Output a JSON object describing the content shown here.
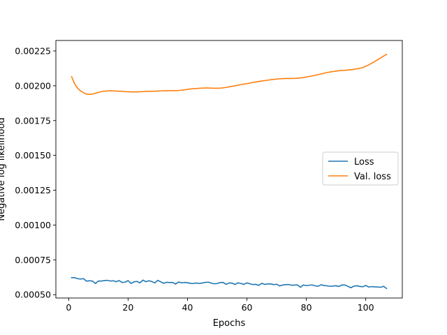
{
  "chart_data": {
    "type": "line",
    "title": "",
    "xlabel": "Epochs",
    "ylabel": "Negative log likelihood",
    "xlim": [
      -4.3,
      112.3
    ],
    "ylim": [
      0.000476,
      0.002325
    ],
    "xticks": [
      0,
      20,
      40,
      60,
      80,
      100
    ],
    "yticks": [
      0.0005,
      0.00075,
      0.001,
      0.00125,
      0.0015,
      0.00175,
      0.002,
      0.00225
    ],
    "ytick_labels": [
      "0.00050",
      "0.00075",
      "0.00100",
      "0.00125",
      "0.00150",
      "0.00175",
      "0.00200",
      "0.00225"
    ],
    "grid": false,
    "legend_position": "center-right",
    "series": [
      {
        "name": "Loss",
        "color": "#1f77b4",
        "x": [
          1,
          2,
          3,
          4,
          5,
          6,
          7,
          8,
          9,
          10,
          11,
          12,
          13,
          14,
          15,
          16,
          17,
          18,
          19,
          20,
          21,
          22,
          23,
          24,
          25,
          26,
          27,
          28,
          29,
          30,
          31,
          32,
          33,
          34,
          35,
          36,
          37,
          38,
          39,
          40,
          41,
          42,
          43,
          44,
          45,
          46,
          47,
          48,
          49,
          50,
          51,
          52,
          53,
          54,
          55,
          56,
          57,
          58,
          59,
          60,
          61,
          62,
          63,
          64,
          65,
          66,
          67,
          68,
          69,
          70,
          71,
          72,
          73,
          74,
          75,
          76,
          77,
          78,
          79,
          80,
          81,
          82,
          83,
          84,
          85,
          86,
          87,
          88,
          89,
          90,
          91,
          92,
          93,
          94,
          95,
          96,
          97,
          98,
          99,
          100,
          101,
          102,
          103,
          104,
          105,
          106,
          107
        ],
        "values": [
          0.000622,
          0.000622,
          0.000615,
          0.000612,
          0.000615,
          0.000597,
          0.0006,
          0.000598,
          0.00058,
          0.000598,
          0.000598,
          0.000601,
          0.000603,
          0.000598,
          0.0006,
          0.000593,
          0.000601,
          0.000588,
          0.00059,
          0.000601,
          0.00058,
          0.000592,
          0.000595,
          0.000585,
          0.000605,
          0.000593,
          0.0006,
          0.000594,
          0.000585,
          0.000603,
          0.000592,
          0.000582,
          0.000589,
          0.000587,
          0.000588,
          0.000576,
          0.000591,
          0.000585,
          0.000588,
          0.000586,
          0.000581,
          0.00058,
          0.000584,
          0.00058,
          0.000584,
          0.000588,
          0.00059,
          0.000583,
          0.000578,
          0.00058,
          0.000587,
          0.000588,
          0.000574,
          0.000584,
          0.000583,
          0.000573,
          0.000585,
          0.00058,
          0.000574,
          0.000585,
          0.000578,
          0.000573,
          0.000574,
          0.000567,
          0.000582,
          0.000574,
          0.000577,
          0.000577,
          0.000572,
          0.000575,
          0.000563,
          0.000569,
          0.000572,
          0.000573,
          0.000568,
          0.000569,
          0.00057,
          0.000553,
          0.00057,
          0.000565,
          0.000568,
          0.00057,
          0.000563,
          0.000561,
          0.000571,
          0.000566,
          0.000563,
          0.00056,
          0.000562,
          0.000564,
          0.000559,
          0.00057,
          0.000569,
          0.00056,
          0.00055,
          0.000561,
          0.000564,
          0.000559,
          0.000557,
          0.000566,
          0.000555,
          0.000558,
          0.000556,
          0.000555,
          0.000553,
          0.00056,
          0.000544
        ]
      },
      {
        "name": "Val. loss",
        "color": "#ff7f0e",
        "x": [
          1,
          2,
          3,
          4,
          5,
          6,
          7,
          8,
          9,
          10,
          11,
          12,
          13,
          14,
          15,
          16,
          17,
          18,
          19,
          20,
          21,
          22,
          23,
          24,
          25,
          26,
          27,
          28,
          29,
          30,
          31,
          32,
          33,
          34,
          35,
          36,
          37,
          38,
          39,
          40,
          41,
          42,
          43,
          44,
          45,
          46,
          47,
          48,
          49,
          50,
          51,
          52,
          53,
          54,
          55,
          56,
          57,
          58,
          59,
          60,
          61,
          62,
          63,
          64,
          65,
          66,
          67,
          68,
          69,
          70,
          71,
          72,
          73,
          74,
          75,
          76,
          77,
          78,
          79,
          80,
          81,
          82,
          83,
          84,
          85,
          86,
          87,
          88,
          89,
          90,
          91,
          92,
          93,
          94,
          95,
          96,
          97,
          98,
          99,
          100,
          101,
          102,
          103,
          104,
          105,
          106,
          107
        ],
        "values": [
          0.002065,
          0.002015,
          0.001983,
          0.001963,
          0.00195,
          0.00194,
          0.001938,
          0.00194,
          0.001946,
          0.001952,
          0.001958,
          0.001961,
          0.001963,
          0.001964,
          0.001963,
          0.001962,
          0.001961,
          0.00196,
          0.001958,
          0.001957,
          0.001956,
          0.001956,
          0.001956,
          0.001957,
          0.001958,
          0.001959,
          0.00196,
          0.00196,
          0.001961,
          0.001962,
          0.001963,
          0.001964,
          0.001964,
          0.001965,
          0.001965,
          0.001965,
          0.001966,
          0.001968,
          0.001971,
          0.001974,
          0.001977,
          0.001979,
          0.00198,
          0.001982,
          0.001983,
          0.001984,
          0.001984,
          0.001983,
          0.001982,
          0.001982,
          0.001983,
          0.001985,
          0.001988,
          0.001992,
          0.001996,
          0.002,
          0.002004,
          0.002008,
          0.002012,
          0.002015,
          0.002019,
          0.002023,
          0.002027,
          0.002031,
          0.002034,
          0.002037,
          0.00204,
          0.002043,
          0.002046,
          0.002048,
          0.00205,
          0.002051,
          0.002052,
          0.002052,
          0.002052,
          0.002053,
          0.002054,
          0.002056,
          0.002059,
          0.002063,
          0.002067,
          0.002071,
          0.002075,
          0.00208,
          0.002085,
          0.00209,
          0.002095,
          0.002099,
          0.002102,
          0.002105,
          0.002108,
          0.00211,
          0.002111,
          0.002113,
          0.002115,
          0.002118,
          0.002121,
          0.002125,
          0.002131,
          0.00214,
          0.00215,
          0.002162,
          0.002174,
          0.002187,
          0.0022,
          0.002213,
          0.002225
        ]
      }
    ]
  }
}
